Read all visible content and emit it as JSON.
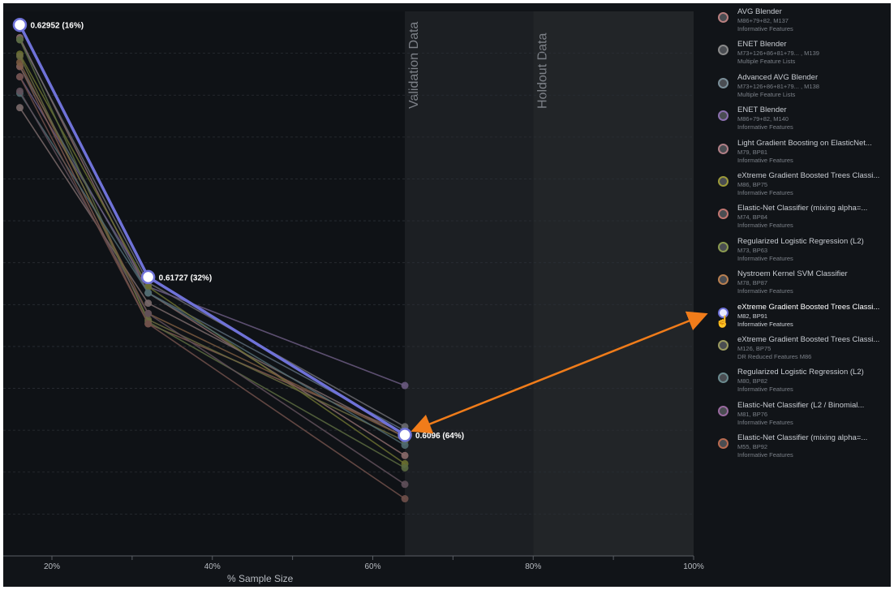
{
  "chart_data": {
    "type": "line",
    "xlabel": "% Sample Size",
    "xlim": [
      15,
      100
    ],
    "ylim": [
      0.6038,
      0.6301
    ],
    "x_ticks": [
      20,
      40,
      60,
      80,
      100
    ],
    "x_tick_labels": [
      "20%",
      "40%",
      "60%",
      "80%",
      "100%"
    ],
    "regions": [
      {
        "name": "Validation Data",
        "x_start": 64,
        "x_end": 80
      },
      {
        "name": "Holdout Data",
        "x_start": 80,
        "x_end": 100
      }
    ],
    "highlight": {
      "name": "eXtreme Gradient Boosted Trees Classi...",
      "color": "#6f72d8",
      "x": [
        16,
        32,
        64
      ],
      "y": [
        0.62952,
        0.61727,
        0.6096
      ],
      "labels": [
        "0.62952 (16%)",
        "0.61727 (32%)",
        "0.6096 (64%)"
      ]
    },
    "series": [
      {
        "name": "AVG Blender",
        "color": "#8a6a6a",
        "x": [
          16,
          32,
          64
        ],
        "y": [
          0.6289,
          0.6165,
          0.6086
        ]
      },
      {
        "name": "ENET Blender",
        "color": "#6a6a70",
        "x": [
          16,
          32,
          64
        ],
        "y": [
          0.6288,
          0.617,
          0.61
        ]
      },
      {
        "name": "Advanced AVG Blender",
        "color": "#5a6a78",
        "x": [
          16,
          32,
          64
        ],
        "y": [
          0.6275,
          0.6165,
          0.6098
        ]
      },
      {
        "name": "ENET Blender",
        "color": "#6a5a80",
        "x": [
          16,
          32,
          64
        ],
        "y": [
          0.627,
          0.6168,
          0.612
        ]
      },
      {
        "name": "Light Gradient Boosting on ElasticNet...",
        "color": "#7a6a6a",
        "x": [
          16,
          32,
          64
        ],
        "y": [
          0.6255,
          0.616,
          0.6095
        ]
      },
      {
        "name": "eXtreme Gradient Boosted Trees Classi...",
        "color": "#6a7030",
        "x": [
          16,
          32,
          64
        ],
        "y": [
          0.6281,
          0.6168,
          0.6082
        ]
      },
      {
        "name": "Elastic-Net Classifier (mixing alpha=...",
        "color": "#805a50",
        "x": [
          16,
          32,
          64
        ],
        "y": [
          0.6275,
          0.615,
          0.6097
        ]
      },
      {
        "name": "Regularized Logistic Regression (L2)",
        "color": "#5a6a40",
        "x": [
          16,
          32,
          64
        ],
        "y": [
          0.6288,
          0.6151,
          0.608
        ]
      },
      {
        "name": "Nystroem Kernel SVM Classifier",
        "color": "#7a5a40",
        "x": [
          16,
          32,
          64
        ],
        "y": [
          0.6277,
          0.6155,
          0.6095
        ]
      },
      {
        "name": "eXtreme Gradient Boosted Trees Classi...",
        "color": "#6a6a40",
        "x": [
          16,
          32,
          64
        ],
        "y": [
          0.628,
          0.6152,
          0.6093
        ]
      },
      {
        "name": "Regularized Logistic Regression (L2)",
        "color": "#506a70",
        "x": [
          16,
          32,
          64
        ],
        "y": [
          0.6262,
          0.6165,
          0.6091
        ]
      },
      {
        "name": "Elastic-Net Classifier (L2 / Binomial...",
        "color": "#60505a",
        "x": [
          16,
          32,
          64
        ],
        "y": [
          0.6263,
          0.6155,
          0.6072
        ]
      },
      {
        "name": "Elastic-Net Classifier (mixing alpha=...",
        "color": "#70504a",
        "x": [
          16,
          32,
          64
        ],
        "y": [
          0.627,
          0.615,
          0.6065
        ]
      }
    ]
  },
  "legend": {
    "items": [
      {
        "name": "AVG Blender",
        "sub1": "M86+79+82, M137",
        "sub2": "Informative Features",
        "color": "#b87f7f"
      },
      {
        "name": "ENET Blender",
        "sub1": "M73+126+86+81+79... , M139",
        "sub2": "Multiple Feature Lists",
        "color": "#8a8a8a"
      },
      {
        "name": "Advanced AVG Blender",
        "sub1": "M73+126+86+81+79... , M138",
        "sub2": "Multiple Feature Lists",
        "color": "#7a8e98"
      },
      {
        "name": "ENET Blender",
        "sub1": "M86+79+82, M140",
        "sub2": "Informative Features",
        "color": "#8b6fae"
      },
      {
        "name": "Light Gradient Boosting on ElasticNet...",
        "sub1": "M79, BP81",
        "sub2": "Informative Features",
        "color": "#b07f86"
      },
      {
        "name": "eXtreme Gradient Boosted Trees Classi...",
        "sub1": "M86, BP75",
        "sub2": "Informative Features",
        "color": "#9c9a3a"
      },
      {
        "name": "Elastic-Net Classifier (mixing alpha=...",
        "sub1": "M74, BP84",
        "sub2": "Informative Features",
        "color": "#c07570"
      },
      {
        "name": "Regularized Logistic Regression (L2)",
        "sub1": "M73, BP63",
        "sub2": "Informative Features",
        "color": "#8a9a50"
      },
      {
        "name": "Nystroem Kernel SVM Classifier",
        "sub1": "M78, BP87",
        "sub2": "Informative Features",
        "color": "#b87f50"
      },
      {
        "name": "eXtreme Gradient Boosted Trees Classi...",
        "sub1": "M82, BP91",
        "sub2": "Informative Features",
        "color": "#6f72d8",
        "active": true
      },
      {
        "name": "eXtreme Gradient Boosted Trees Classi...",
        "sub1": "M126, BP75",
        "sub2": "DR Reduced Features M86",
        "color": "#9a9a60"
      },
      {
        "name": "Regularized Logistic Regression (L2)",
        "sub1": "M80, BP82",
        "sub2": "Informative Features",
        "color": "#6a8a8e"
      },
      {
        "name": "Elastic-Net Classifier (L2 / Binomial...",
        "sub1": "M81, BP76",
        "sub2": "Informative Features",
        "color": "#9a6aa0"
      },
      {
        "name": "Elastic-Net Classifier (mixing alpha=...",
        "sub1": "M55, BP92",
        "sub2": "Informative Features",
        "color": "#b86a50"
      }
    ]
  },
  "colors": {
    "background": "#111418",
    "plot_background": "#0f1216",
    "validation_band": "#1c1f23",
    "holdout_band": "#222528",
    "highlight": "#6f72d8",
    "arrow": "#f07c1a"
  }
}
